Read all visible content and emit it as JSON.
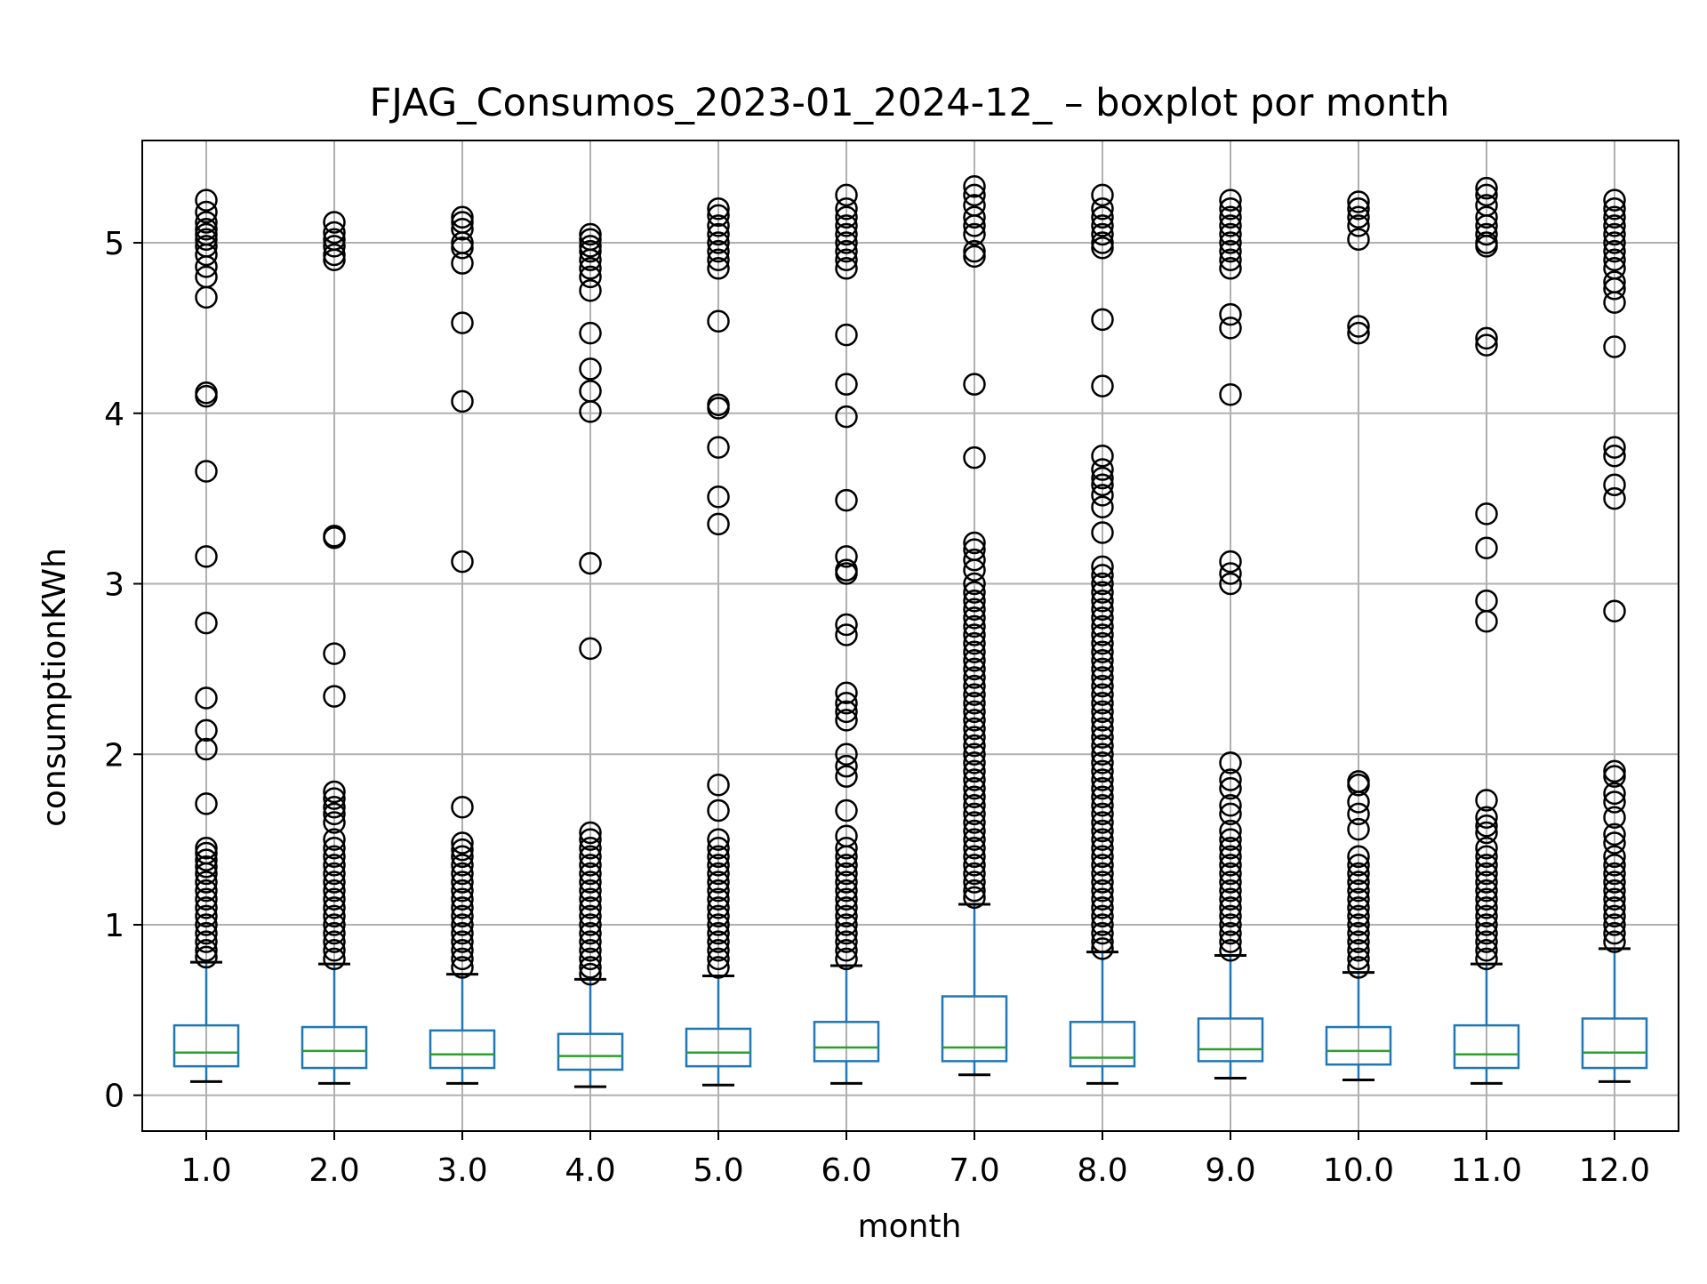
{
  "chart_data": {
    "type": "box",
    "title": "FJAG_Consumos_2023-01_2024-12_ – boxplot por month",
    "xlabel": "month",
    "ylabel": "consumptionKWh",
    "ylim": [
      -0.21,
      5.6
    ],
    "yticks": [
      0,
      1,
      2,
      3,
      4,
      5
    ],
    "grid": true,
    "categories": [
      "1.0",
      "2.0",
      "3.0",
      "4.0",
      "5.0",
      "6.0",
      "7.0",
      "8.0",
      "9.0",
      "10.0",
      "11.0",
      "12.0"
    ],
    "boxes": [
      {
        "whislo": 0.08,
        "q1": 0.17,
        "med": 0.25,
        "q3": 0.41,
        "whishi": 0.78,
        "fliers": [
          5.25,
          5.18,
          5.12,
          5.08,
          5.05,
          5.02,
          4.98,
          4.93,
          4.86,
          4.8,
          4.68,
          4.12,
          4.1,
          3.66,
          3.16,
          2.77,
          2.33,
          2.14,
          2.03,
          1.71,
          1.45,
          1.42,
          1.38,
          1.34,
          1.3,
          1.25,
          1.2,
          1.15,
          1.1,
          1.05,
          1.0,
          0.95,
          0.9,
          0.85,
          0.81
        ]
      },
      {
        "whislo": 0.07,
        "q1": 0.16,
        "med": 0.26,
        "q3": 0.4,
        "whishi": 0.77,
        "fliers": [
          5.12,
          5.06,
          5.02,
          4.98,
          4.93,
          4.9,
          3.28,
          3.27,
          2.59,
          2.34,
          1.78,
          1.74,
          1.69,
          1.65,
          1.6,
          1.5,
          1.45,
          1.4,
          1.35,
          1.3,
          1.25,
          1.2,
          1.15,
          1.1,
          1.05,
          1.0,
          0.95,
          0.9,
          0.85,
          0.8
        ]
      },
      {
        "whislo": 0.07,
        "q1": 0.16,
        "med": 0.24,
        "q3": 0.38,
        "whishi": 0.71,
        "fliers": [
          5.15,
          5.12,
          5.08,
          5.0,
          4.97,
          4.88,
          4.53,
          4.07,
          3.13,
          1.69,
          1.48,
          1.44,
          1.4,
          1.35,
          1.3,
          1.25,
          1.2,
          1.15,
          1.1,
          1.05,
          1.0,
          0.95,
          0.9,
          0.85,
          0.8,
          0.75
        ]
      },
      {
        "whislo": 0.05,
        "q1": 0.15,
        "med": 0.23,
        "q3": 0.36,
        "whishi": 0.68,
        "fliers": [
          5.05,
          5.02,
          4.98,
          4.95,
          4.9,
          4.85,
          4.8,
          4.72,
          4.47,
          4.26,
          4.13,
          4.01,
          3.12,
          2.62,
          1.54,
          1.5,
          1.45,
          1.4,
          1.35,
          1.3,
          1.25,
          1.2,
          1.15,
          1.1,
          1.05,
          1.0,
          0.95,
          0.9,
          0.85,
          0.8,
          0.75,
          0.71
        ]
      },
      {
        "whislo": 0.06,
        "q1": 0.17,
        "med": 0.25,
        "q3": 0.39,
        "whishi": 0.7,
        "fliers": [
          5.2,
          5.16,
          5.1,
          5.05,
          5.0,
          4.95,
          4.9,
          4.85,
          4.54,
          4.05,
          4.03,
          3.8,
          3.51,
          3.35,
          1.82,
          1.67,
          1.5,
          1.45,
          1.4,
          1.35,
          1.3,
          1.25,
          1.2,
          1.15,
          1.1,
          1.05,
          1.0,
          0.95,
          0.9,
          0.85,
          0.8,
          0.75
        ]
      },
      {
        "whislo": 0.07,
        "q1": 0.2,
        "med": 0.28,
        "q3": 0.43,
        "whishi": 0.76,
        "fliers": [
          5.28,
          5.2,
          5.15,
          5.1,
          5.05,
          5.0,
          4.95,
          4.9,
          4.85,
          4.46,
          4.17,
          3.98,
          3.49,
          3.16,
          3.08,
          3.06,
          2.76,
          2.7,
          2.36,
          2.3,
          2.25,
          2.2,
          2.0,
          1.93,
          1.87,
          1.67,
          1.52,
          1.45,
          1.4,
          1.35,
          1.3,
          1.25,
          1.2,
          1.15,
          1.1,
          1.05,
          1.0,
          0.95,
          0.9,
          0.85,
          0.8
        ]
      },
      {
        "whislo": 0.12,
        "q1": 0.2,
        "med": 0.28,
        "q3": 0.58,
        "whishi": 1.12,
        "fliers": [
          5.33,
          5.28,
          5.22,
          5.15,
          5.1,
          5.05,
          4.95,
          4.92,
          4.17,
          3.74,
          3.24,
          3.2,
          3.14,
          3.08,
          3.0,
          2.95,
          2.9,
          2.85,
          2.8,
          2.75,
          2.7,
          2.65,
          2.6,
          2.55,
          2.5,
          2.45,
          2.4,
          2.35,
          2.3,
          2.25,
          2.2,
          2.15,
          2.1,
          2.05,
          2.0,
          1.95,
          1.9,
          1.85,
          1.8,
          1.75,
          1.7,
          1.65,
          1.6,
          1.55,
          1.5,
          1.45,
          1.4,
          1.35,
          1.3,
          1.25,
          1.2,
          1.16
        ]
      },
      {
        "whislo": 0.07,
        "q1": 0.17,
        "med": 0.22,
        "q3": 0.43,
        "whishi": 0.84,
        "fliers": [
          5.28,
          5.2,
          5.15,
          5.1,
          5.05,
          5.0,
          4.97,
          4.55,
          4.16,
          3.75,
          3.67,
          3.62,
          3.58,
          3.52,
          3.45,
          3.3,
          3.1,
          3.05,
          3.0,
          2.95,
          2.9,
          2.85,
          2.8,
          2.75,
          2.7,
          2.65,
          2.6,
          2.55,
          2.5,
          2.45,
          2.4,
          2.35,
          2.3,
          2.25,
          2.2,
          2.15,
          2.1,
          2.05,
          2.0,
          1.95,
          1.9,
          1.85,
          1.8,
          1.75,
          1.7,
          1.65,
          1.6,
          1.55,
          1.5,
          1.45,
          1.4,
          1.35,
          1.3,
          1.25,
          1.2,
          1.15,
          1.1,
          1.05,
          1.0,
          0.95,
          0.9,
          0.86
        ]
      },
      {
        "whislo": 0.1,
        "q1": 0.2,
        "med": 0.27,
        "q3": 0.45,
        "whishi": 0.82,
        "fliers": [
          5.25,
          5.2,
          5.15,
          5.1,
          5.05,
          5.0,
          4.95,
          4.9,
          4.85,
          4.58,
          4.5,
          4.11,
          3.13,
          3.06,
          3.0,
          1.95,
          1.85,
          1.8,
          1.7,
          1.65,
          1.55,
          1.5,
          1.45,
          1.4,
          1.35,
          1.3,
          1.25,
          1.2,
          1.15,
          1.1,
          1.05,
          1.0,
          0.95,
          0.9,
          0.85
        ]
      },
      {
        "whislo": 0.09,
        "q1": 0.18,
        "med": 0.26,
        "q3": 0.4,
        "whishi": 0.72,
        "fliers": [
          5.24,
          5.2,
          5.15,
          5.1,
          5.02,
          4.51,
          4.47,
          1.84,
          1.82,
          1.72,
          1.65,
          1.56,
          1.4,
          1.35,
          1.3,
          1.25,
          1.2,
          1.15,
          1.1,
          1.05,
          1.0,
          0.95,
          0.9,
          0.85,
          0.8,
          0.75
        ]
      },
      {
        "whislo": 0.07,
        "q1": 0.16,
        "med": 0.24,
        "q3": 0.41,
        "whishi": 0.77,
        "fliers": [
          5.32,
          5.28,
          5.22,
          5.15,
          5.1,
          5.05,
          5.0,
          4.98,
          4.44,
          4.4,
          3.41,
          3.21,
          2.9,
          2.78,
          1.73,
          1.63,
          1.58,
          1.54,
          1.45,
          1.4,
          1.35,
          1.3,
          1.25,
          1.2,
          1.15,
          1.1,
          1.05,
          1.0,
          0.95,
          0.9,
          0.85,
          0.8
        ]
      },
      {
        "whislo": 0.08,
        "q1": 0.16,
        "med": 0.25,
        "q3": 0.45,
        "whishi": 0.86,
        "fliers": [
          5.25,
          5.2,
          5.15,
          5.1,
          5.05,
          5.0,
          4.95,
          4.9,
          4.85,
          4.77,
          4.73,
          4.65,
          4.39,
          3.8,
          3.75,
          3.58,
          3.5,
          2.84,
          1.9,
          1.87,
          1.77,
          1.72,
          1.63,
          1.53,
          1.48,
          1.4,
          1.35,
          1.3,
          1.25,
          1.2,
          1.15,
          1.1,
          1.05,
          1.0,
          0.95,
          0.9
        ]
      }
    ]
  },
  "colors": {
    "box": "#1f77b4",
    "median": "#2ca02c",
    "whisker_cap": "#000000",
    "flier": "#000000",
    "grid": "#b0b0b0",
    "axes": "#000000"
  }
}
